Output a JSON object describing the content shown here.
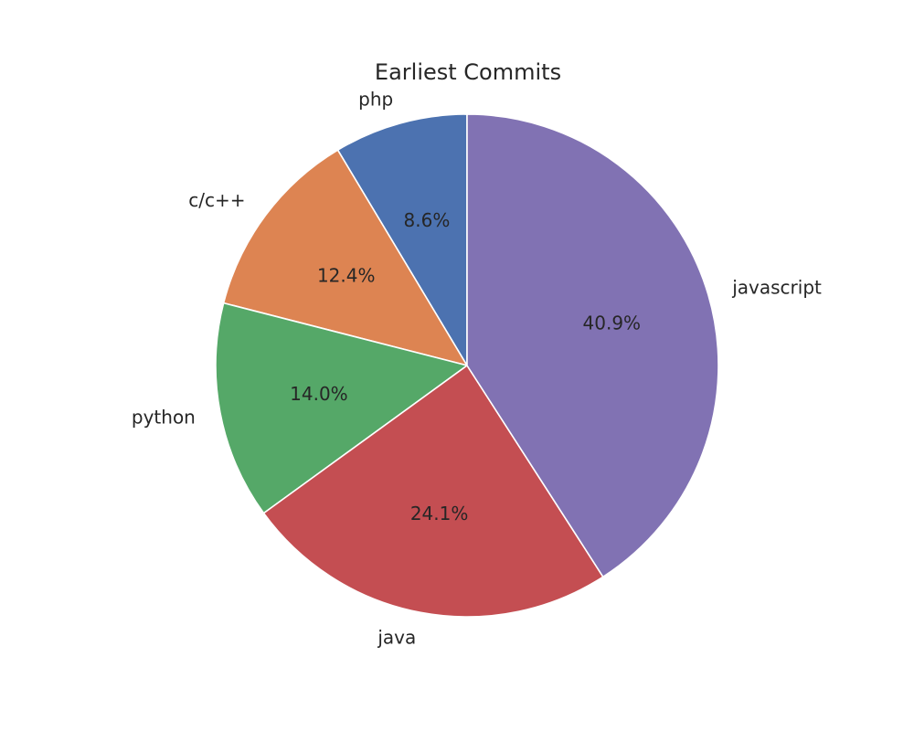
{
  "chart_data": {
    "type": "pie",
    "title": "Earliest Commits",
    "categories": [
      "php",
      "c/c++",
      "python",
      "java",
      "javascript"
    ],
    "values": [
      8.6,
      12.4,
      14.0,
      24.1,
      40.9
    ],
    "percent_labels": [
      "8.6%",
      "12.4%",
      "14.0%",
      "24.1%",
      "40.9%"
    ],
    "colors": [
      "#4c72b0",
      "#dd8452",
      "#55a868",
      "#c44e52",
      "#8172b3"
    ],
    "start_angle_degrees": 90,
    "direction": "counterclockwise",
    "legend": "none"
  }
}
